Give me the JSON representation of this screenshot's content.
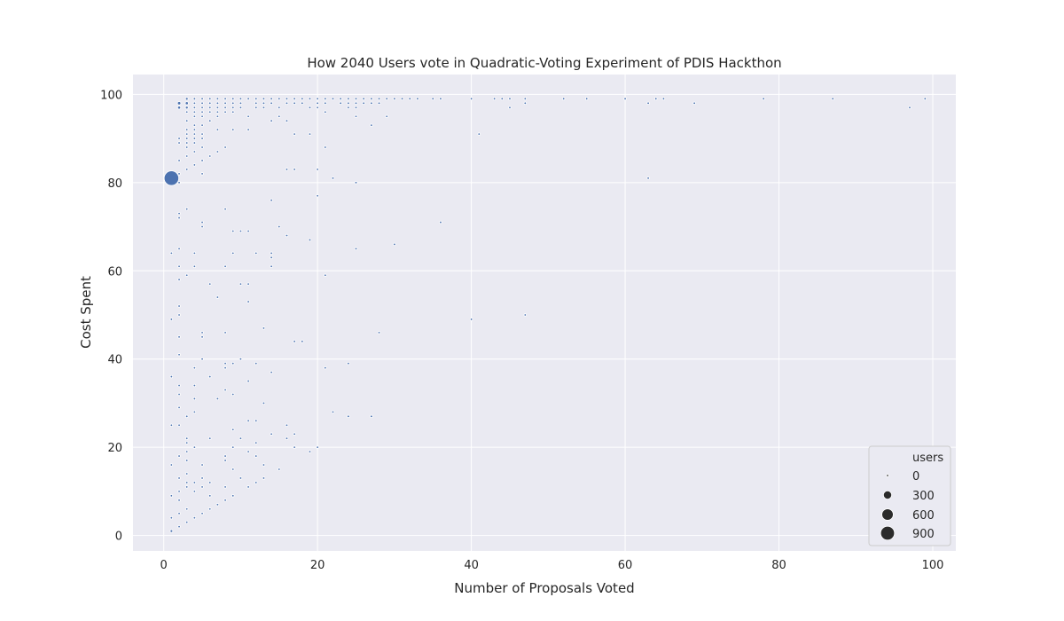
{
  "chart_data": {
    "type": "scatter",
    "title": "How 2040 Users vote in Quadratic-Voting Experiment of PDIS Hackthon",
    "xlabel": "Number of Proposals Voted",
    "ylabel": "Cost Spent",
    "xlim": [
      -4,
      103
    ],
    "ylim": [
      -3.5,
      104.5
    ],
    "xticks": [
      0,
      20,
      40,
      60,
      80,
      100
    ],
    "yticks": [
      0,
      20,
      40,
      60,
      80,
      100
    ],
    "grid": true,
    "background": "#eaeaf2",
    "marker_color": "#4c72b0",
    "legend": {
      "title": "users",
      "position": "bottom-right",
      "entries": [
        {
          "label": "0",
          "size": 0
        },
        {
          "label": "300",
          "size": 300
        },
        {
          "label": "600",
          "size": 600
        },
        {
          "label": "900",
          "size": 900
        }
      ]
    },
    "points": [
      [
        1,
        81,
        1000
      ],
      [
        2,
        98,
        30
      ],
      [
        2,
        97,
        20
      ],
      [
        3,
        98,
        20
      ],
      [
        3,
        97,
        15
      ],
      [
        3,
        99,
        10
      ],
      [
        4,
        99,
        3
      ],
      [
        5,
        99,
        2
      ],
      [
        6,
        99,
        2
      ],
      [
        7,
        99,
        2
      ],
      [
        8,
        99,
        2
      ],
      [
        9,
        99,
        2
      ],
      [
        10,
        99,
        2
      ],
      [
        11,
        99,
        2
      ],
      [
        12,
        99,
        2
      ],
      [
        13,
        99,
        2
      ],
      [
        14,
        99,
        2
      ],
      [
        15,
        99,
        2
      ],
      [
        16,
        99,
        2
      ],
      [
        17,
        99,
        2
      ],
      [
        18,
        99,
        2
      ],
      [
        19,
        99,
        2
      ],
      [
        20,
        99,
        2
      ],
      [
        21,
        99,
        2
      ],
      [
        22,
        99,
        2
      ],
      [
        23,
        99,
        2
      ],
      [
        24,
        99,
        2
      ],
      [
        25,
        99,
        2
      ],
      [
        26,
        99,
        2
      ],
      [
        27,
        99,
        2
      ],
      [
        28,
        99,
        2
      ],
      [
        29,
        99,
        2
      ],
      [
        30,
        99,
        2
      ],
      [
        31,
        99,
        2
      ],
      [
        32,
        99,
        2
      ],
      [
        33,
        99,
        2
      ],
      [
        35,
        99,
        2
      ],
      [
        36,
        99,
        2
      ],
      [
        40,
        99,
        2
      ],
      [
        43,
        99,
        2
      ],
      [
        44,
        99,
        2
      ],
      [
        45,
        99,
        2
      ],
      [
        47,
        99,
        2
      ],
      [
        52,
        99,
        2
      ],
      [
        55,
        99,
        2
      ],
      [
        60,
        99,
        2
      ],
      [
        64,
        99,
        2
      ],
      [
        65,
        99,
        2
      ],
      [
        78,
        99,
        2
      ],
      [
        87,
        99,
        2
      ],
      [
        99,
        99,
        2
      ],
      [
        4,
        98,
        2
      ],
      [
        5,
        98,
        2
      ],
      [
        6,
        98,
        2
      ],
      [
        7,
        98,
        2
      ],
      [
        8,
        98,
        2
      ],
      [
        9,
        98,
        2
      ],
      [
        10,
        98,
        2
      ],
      [
        12,
        98,
        2
      ],
      [
        13,
        98,
        2
      ],
      [
        14,
        98,
        2
      ],
      [
        16,
        98,
        2
      ],
      [
        17,
        98,
        2
      ],
      [
        18,
        98,
        2
      ],
      [
        20,
        98,
        2
      ],
      [
        21,
        98,
        2
      ],
      [
        23,
        98,
        2
      ],
      [
        24,
        98,
        2
      ],
      [
        25,
        98,
        2
      ],
      [
        26,
        98,
        2
      ],
      [
        27,
        98,
        2
      ],
      [
        28,
        98,
        2
      ],
      [
        47,
        98,
        2
      ],
      [
        63,
        98,
        2
      ],
      [
        69,
        98,
        2
      ],
      [
        4,
        97,
        2
      ],
      [
        5,
        97,
        2
      ],
      [
        6,
        97,
        2
      ],
      [
        7,
        97,
        2
      ],
      [
        8,
        97,
        2
      ],
      [
        9,
        97,
        2
      ],
      [
        10,
        97,
        2
      ],
      [
        12,
        97,
        2
      ],
      [
        13,
        97,
        2
      ],
      [
        15,
        97,
        2
      ],
      [
        19,
        97,
        2
      ],
      [
        20,
        97,
        2
      ],
      [
        24,
        97,
        2
      ],
      [
        25,
        97,
        2
      ],
      [
        45,
        97,
        2
      ],
      [
        97,
        97,
        2
      ],
      [
        3,
        96,
        2
      ],
      [
        4,
        96,
        2
      ],
      [
        5,
        96,
        2
      ],
      [
        6,
        96,
        2
      ],
      [
        7,
        96,
        2
      ],
      [
        8,
        96,
        2
      ],
      [
        9,
        96,
        2
      ],
      [
        21,
        96,
        2
      ],
      [
        4,
        95,
        2
      ],
      [
        5,
        95,
        2
      ],
      [
        7,
        95,
        2
      ],
      [
        11,
        95,
        2
      ],
      [
        15,
        95,
        2
      ],
      [
        25,
        95,
        2
      ],
      [
        29,
        95,
        2
      ],
      [
        3,
        94,
        2
      ],
      [
        6,
        94,
        2
      ],
      [
        14,
        94,
        2
      ],
      [
        16,
        94,
        2
      ],
      [
        4,
        93,
        2
      ],
      [
        5,
        93,
        2
      ],
      [
        27,
        93,
        2
      ],
      [
        3,
        92,
        2
      ],
      [
        4,
        92,
        2
      ],
      [
        7,
        92,
        2
      ],
      [
        9,
        92,
        2
      ],
      [
        11,
        92,
        2
      ],
      [
        3,
        91,
        2
      ],
      [
        4,
        91,
        2
      ],
      [
        5,
        91,
        2
      ],
      [
        17,
        91,
        2
      ],
      [
        19,
        91,
        2
      ],
      [
        41,
        91,
        2
      ],
      [
        2,
        90,
        2
      ],
      [
        3,
        90,
        2
      ],
      [
        4,
        90,
        2
      ],
      [
        5,
        90,
        2
      ],
      [
        2,
        89,
        2
      ],
      [
        3,
        89,
        2
      ],
      [
        4,
        89,
        2
      ],
      [
        3,
        88,
        2
      ],
      [
        5,
        88,
        2
      ],
      [
        8,
        88,
        2
      ],
      [
        21,
        88,
        2
      ],
      [
        4,
        87,
        2
      ],
      [
        7,
        87,
        2
      ],
      [
        3,
        86,
        2
      ],
      [
        6,
        86,
        2
      ],
      [
        2,
        85,
        2
      ],
      [
        5,
        85,
        2
      ],
      [
        4,
        84,
        2
      ],
      [
        3,
        83,
        2
      ],
      [
        16,
        83,
        2
      ],
      [
        17,
        83,
        2
      ],
      [
        20,
        83,
        2
      ],
      [
        2,
        82,
        2
      ],
      [
        5,
        82,
        2
      ],
      [
        22,
        81,
        2
      ],
      [
        63,
        81,
        2
      ],
      [
        2,
        80,
        2
      ],
      [
        25,
        80,
        2
      ],
      [
        20,
        77,
        2
      ],
      [
        14,
        76,
        2
      ],
      [
        3,
        74,
        2
      ],
      [
        8,
        74,
        2
      ],
      [
        2,
        73,
        2
      ],
      [
        2,
        72,
        2
      ],
      [
        5,
        71,
        2
      ],
      [
        36,
        71,
        2
      ],
      [
        5,
        70,
        2
      ],
      [
        15,
        70,
        2
      ],
      [
        9,
        69,
        2
      ],
      [
        10,
        69,
        2
      ],
      [
        11,
        69,
        2
      ],
      [
        16,
        68,
        2
      ],
      [
        19,
        67,
        2
      ],
      [
        30,
        66,
        2
      ],
      [
        2,
        65,
        2
      ],
      [
        25,
        65,
        2
      ],
      [
        1,
        64,
        2
      ],
      [
        4,
        64,
        2
      ],
      [
        9,
        64,
        2
      ],
      [
        12,
        64,
        2
      ],
      [
        14,
        64,
        2
      ],
      [
        14,
        63,
        2
      ],
      [
        2,
        61,
        2
      ],
      [
        4,
        61,
        2
      ],
      [
        8,
        61,
        2
      ],
      [
        14,
        61,
        2
      ],
      [
        3,
        59,
        2
      ],
      [
        21,
        59,
        2
      ],
      [
        2,
        58,
        2
      ],
      [
        6,
        57,
        2
      ],
      [
        10,
        57,
        2
      ],
      [
        11,
        57,
        2
      ],
      [
        7,
        54,
        2
      ],
      [
        11,
        53,
        2
      ],
      [
        2,
        52,
        2
      ],
      [
        2,
        50,
        2
      ],
      [
        47,
        50,
        2
      ],
      [
        1,
        49,
        2
      ],
      [
        40,
        49,
        2
      ],
      [
        13,
        47,
        2
      ],
      [
        5,
        46,
        2
      ],
      [
        8,
        46,
        2
      ],
      [
        28,
        46,
        2
      ],
      [
        2,
        45,
        2
      ],
      [
        5,
        45,
        2
      ],
      [
        17,
        44,
        2
      ],
      [
        18,
        44,
        2
      ],
      [
        2,
        41,
        2
      ],
      [
        5,
        40,
        2
      ],
      [
        10,
        40,
        2
      ],
      [
        8,
        39,
        2
      ],
      [
        9,
        39,
        2
      ],
      [
        12,
        39,
        2
      ],
      [
        24,
        39,
        2
      ],
      [
        4,
        38,
        2
      ],
      [
        8,
        38,
        2
      ],
      [
        21,
        38,
        2
      ],
      [
        14,
        37,
        2
      ],
      [
        1,
        36,
        2
      ],
      [
        6,
        36,
        2
      ],
      [
        11,
        35,
        2
      ],
      [
        2,
        34,
        2
      ],
      [
        4,
        34,
        2
      ],
      [
        8,
        33,
        2
      ],
      [
        2,
        32,
        2
      ],
      [
        9,
        32,
        2
      ],
      [
        4,
        31,
        2
      ],
      [
        7,
        31,
        2
      ],
      [
        13,
        30,
        2
      ],
      [
        2,
        29,
        2
      ],
      [
        4,
        28,
        2
      ],
      [
        22,
        28,
        2
      ],
      [
        3,
        27,
        2
      ],
      [
        24,
        27,
        2
      ],
      [
        27,
        27,
        2
      ],
      [
        11,
        26,
        2
      ],
      [
        12,
        26,
        2
      ],
      [
        1,
        25,
        2
      ],
      [
        2,
        25,
        2
      ],
      [
        16,
        25,
        2
      ],
      [
        9,
        24,
        2
      ],
      [
        14,
        23,
        2
      ],
      [
        17,
        23,
        2
      ],
      [
        3,
        22,
        2
      ],
      [
        6,
        22,
        2
      ],
      [
        10,
        22,
        2
      ],
      [
        16,
        22,
        2
      ],
      [
        3,
        21,
        2
      ],
      [
        12,
        21,
        2
      ],
      [
        4,
        20,
        2
      ],
      [
        9,
        20,
        2
      ],
      [
        17,
        20,
        2
      ],
      [
        20,
        20,
        2
      ],
      [
        3,
        19,
        2
      ],
      [
        11,
        19,
        2
      ],
      [
        19,
        19,
        2
      ],
      [
        2,
        18,
        2
      ],
      [
        8,
        18,
        2
      ],
      [
        12,
        18,
        2
      ],
      [
        3,
        17,
        2
      ],
      [
        8,
        17,
        2
      ],
      [
        1,
        16,
        2
      ],
      [
        5,
        16,
        2
      ],
      [
        13,
        16,
        2
      ],
      [
        9,
        15,
        2
      ],
      [
        15,
        15,
        2
      ],
      [
        3,
        14,
        2
      ],
      [
        2,
        13,
        2
      ],
      [
        5,
        13,
        2
      ],
      [
        10,
        13,
        2
      ],
      [
        13,
        13,
        2
      ],
      [
        3,
        12,
        2
      ],
      [
        4,
        12,
        2
      ],
      [
        6,
        12,
        2
      ],
      [
        12,
        12,
        2
      ],
      [
        3,
        11,
        2
      ],
      [
        5,
        11,
        2
      ],
      [
        8,
        11,
        2
      ],
      [
        11,
        11,
        2
      ],
      [
        2,
        10,
        2
      ],
      [
        4,
        10,
        2
      ],
      [
        1,
        9,
        2
      ],
      [
        6,
        9,
        2
      ],
      [
        9,
        9,
        2
      ],
      [
        2,
        8,
        2
      ],
      [
        8,
        8,
        2
      ],
      [
        7,
        7,
        2
      ],
      [
        3,
        6,
        2
      ],
      [
        6,
        6,
        2
      ],
      [
        2,
        5,
        2
      ],
      [
        5,
        5,
        2
      ],
      [
        1,
        4,
        2
      ],
      [
        4,
        4,
        2
      ],
      [
        3,
        3,
        2
      ],
      [
        2,
        2,
        2
      ],
      [
        1,
        1,
        10
      ]
    ]
  }
}
